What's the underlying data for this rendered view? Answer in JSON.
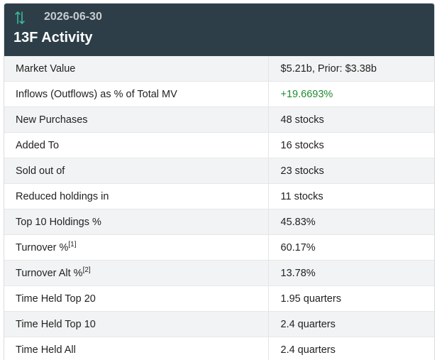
{
  "header": {
    "date": "2026-06-30",
    "title": "13F Activity",
    "icon": "up-down-arrows-icon",
    "icon_color": "#3cc0a0",
    "background": "#2d3e48"
  },
  "rows": [
    {
      "label": "Market Value",
      "value": "$5.21b, Prior: $3.38b"
    },
    {
      "label": "Inflows (Outflows) as % of Total MV",
      "value": "+19.6693%",
      "value_color": "#1f8a2e"
    },
    {
      "label": "New Purchases",
      "value": "48 stocks"
    },
    {
      "label": "Added To",
      "value": "16 stocks"
    },
    {
      "label": "Sold out of",
      "value": "23 stocks"
    },
    {
      "label": "Reduced holdings in",
      "value": "11 stocks"
    },
    {
      "label": "Top 10 Holdings %",
      "value": "45.83%"
    },
    {
      "label": "Turnover %",
      "footnote": "[1]",
      "value": "60.17%"
    },
    {
      "label": "Turnover Alt %",
      "footnote": "[2]",
      "value": "13.78%"
    },
    {
      "label": "Time Held Top 20",
      "value": "1.95 quarters"
    },
    {
      "label": "Time Held Top 10",
      "value": "2.4 quarters"
    },
    {
      "label": "Time Held All",
      "value": "2.4 quarters"
    }
  ]
}
